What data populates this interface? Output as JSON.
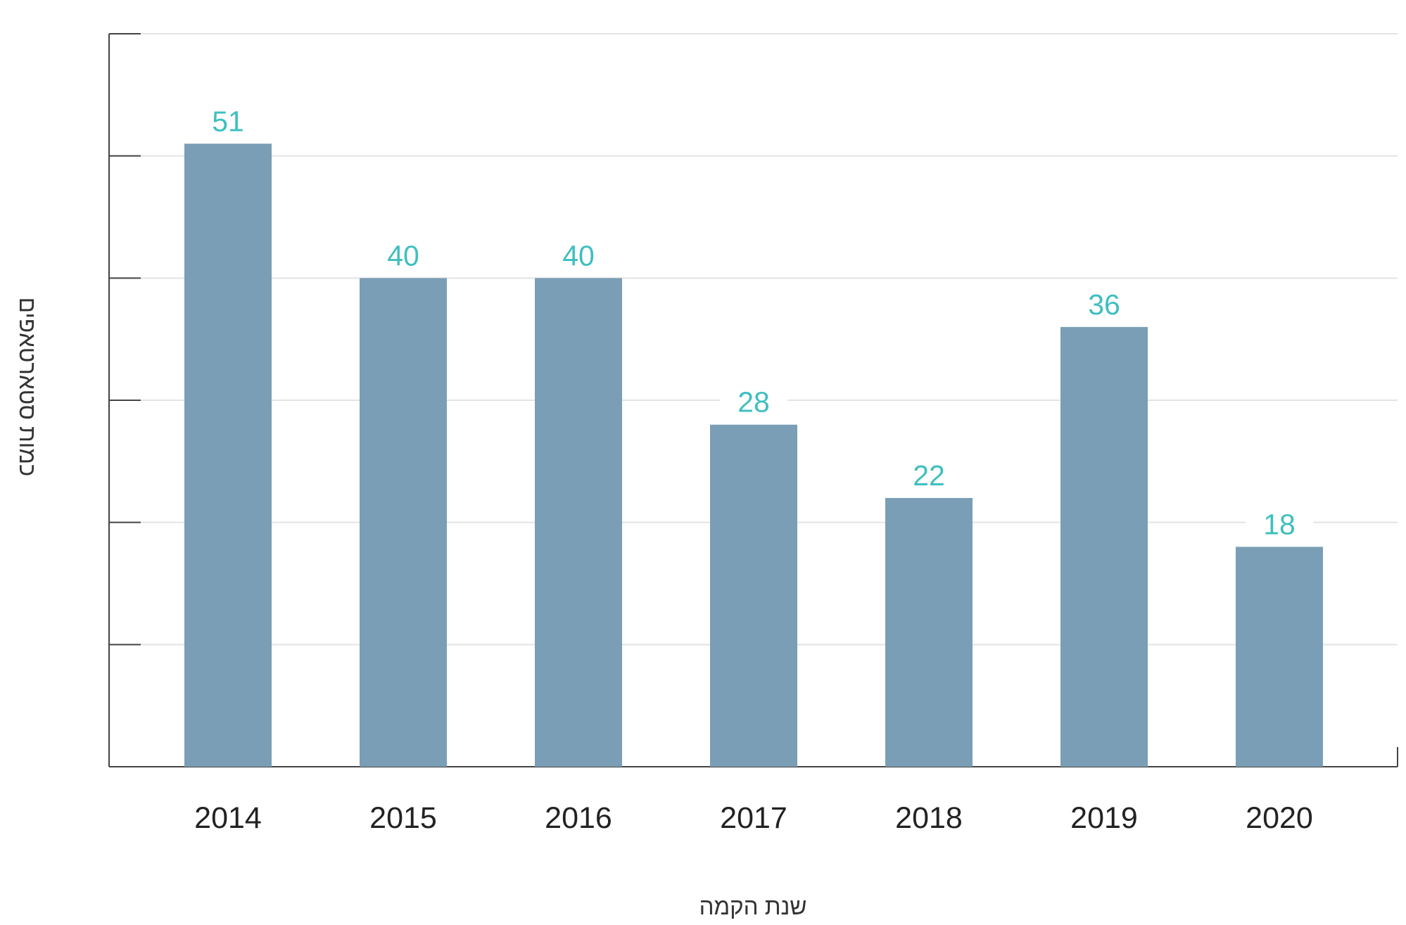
{
  "chart_data": {
    "type": "bar",
    "categories": [
      "2014",
      "2015",
      "2016",
      "2017",
      "2018",
      "2019",
      "2020"
    ],
    "values": [
      51,
      40,
      40,
      28,
      22,
      36,
      18
    ],
    "title": "",
    "xlabel": "שנת הקמה",
    "ylabel": "כמות סטארטאפים",
    "ylim": [
      0,
      60
    ],
    "grid": true,
    "legend": "none",
    "data_labels": true,
    "colors": {
      "bar": "#7a9eb5",
      "value_label": "#3fbfc0"
    }
  }
}
